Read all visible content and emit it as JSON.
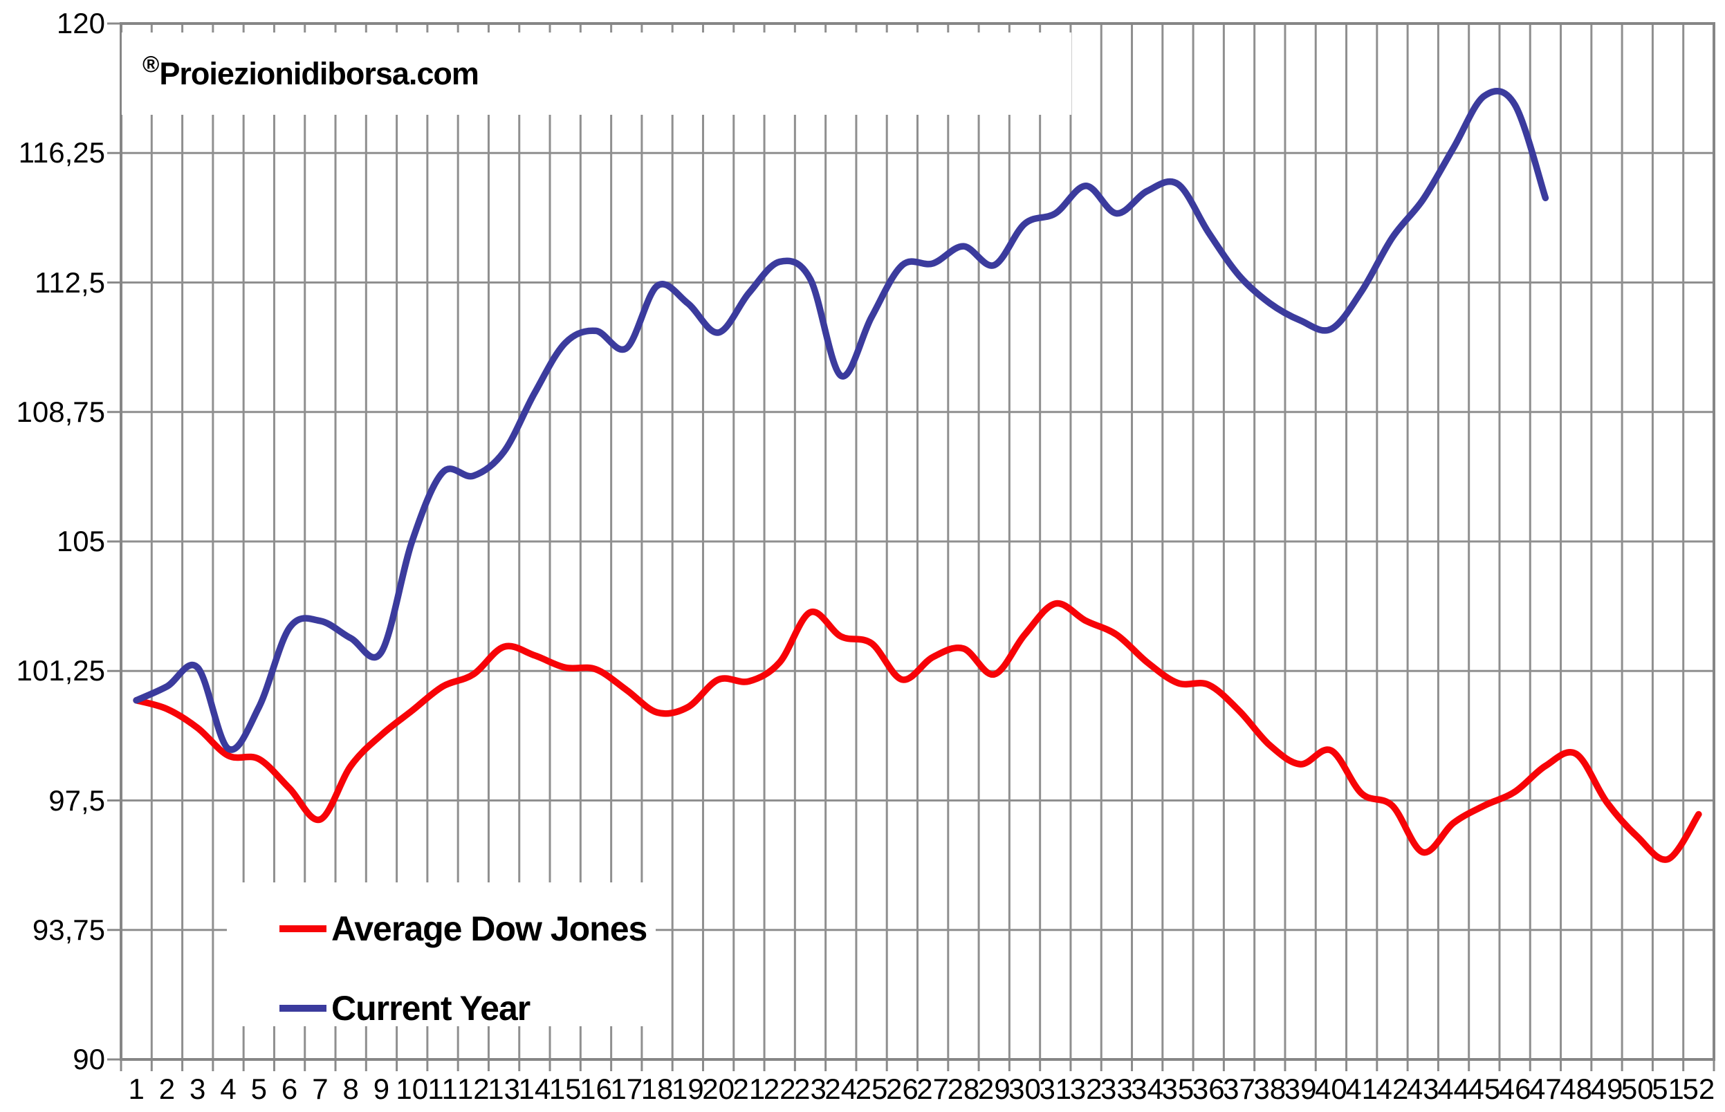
{
  "watermark": {
    "symbol": "®",
    "text": "Proiezionidiborsa.com"
  },
  "chart_data": {
    "type": "line",
    "title": "",
    "xlabel": "",
    "ylabel": "",
    "ylim": [
      90,
      120
    ],
    "y_tick_step": 3.75,
    "grid": "vertical-and-horizontal",
    "legend_position": "inside-bottom-left",
    "categories": [
      1,
      2,
      3,
      4,
      5,
      6,
      7,
      8,
      9,
      10,
      11,
      12,
      13,
      14,
      15,
      16,
      17,
      18,
      19,
      20,
      21,
      22,
      23,
      24,
      25,
      26,
      27,
      28,
      29,
      30,
      31,
      32,
      33,
      34,
      35,
      36,
      37,
      38,
      39,
      40,
      41,
      42,
      43,
      44,
      45,
      46,
      47,
      48,
      49,
      50,
      51,
      52
    ],
    "y_ticks": [
      {
        "label": "120",
        "value": 120
      },
      {
        "label": "116,25",
        "value": 116.25
      },
      {
        "label": "112,5",
        "value": 112.5
      },
      {
        "label": "108,75",
        "value": 108.75
      },
      {
        "label": "105",
        "value": 105
      },
      {
        "label": "101,25",
        "value": 101.25
      },
      {
        "label": "97,5",
        "value": 97.5
      },
      {
        "label": "93,75",
        "value": 93.75
      },
      {
        "label": "90",
        "value": 90
      }
    ],
    "series": [
      {
        "name": "Average Dow Jones",
        "color": "#F70307",
        "values": [
          100.4,
          100.15,
          99.6,
          98.8,
          98.7,
          97.85,
          96.95,
          98.5,
          99.4,
          100.1,
          100.8,
          101.15,
          101.95,
          101.7,
          101.35,
          101.3,
          100.7,
          100.05,
          100.2,
          101.0,
          100.95,
          101.5,
          102.95,
          102.25,
          102.05,
          101.0,
          101.65,
          101.9,
          101.15,
          102.3,
          103.2,
          102.7,
          102.3,
          101.5,
          100.9,
          100.85,
          100.1,
          99.1,
          98.55,
          98.95,
          97.7,
          97.35,
          96.0,
          96.85,
          97.35,
          97.75,
          98.5,
          98.85,
          97.45,
          96.45,
          95.8,
          97.1
        ]
      },
      {
        "name": "Current Year",
        "color": "#3B3B9D",
        "values": [
          100.4,
          100.8,
          101.35,
          99.0,
          100.2,
          102.5,
          102.7,
          102.2,
          101.8,
          105.0,
          107.0,
          106.9,
          107.6,
          109.3,
          110.75,
          111.1,
          110.6,
          112.4,
          111.9,
          111.05,
          112.2,
          113.1,
          112.6,
          109.8,
          111.5,
          113.0,
          113.05,
          113.55,
          113.0,
          114.2,
          114.5,
          115.3,
          114.5,
          115.15,
          115.35,
          113.95,
          112.7,
          111.9,
          111.4,
          111.15,
          112.25,
          113.8,
          114.9,
          116.4,
          117.9,
          117.65,
          114.95
        ]
      }
    ]
  }
}
